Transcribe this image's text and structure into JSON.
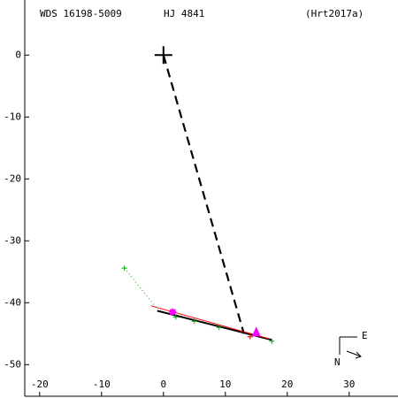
{
  "chart_data": {
    "type": "scatter",
    "title": "WDS 16198-5009",
    "subtitle": "HJ 4841",
    "reference": "(Hrt2017a)",
    "compass": {
      "east": "E",
      "north": "N"
    },
    "xlim": [
      -22.4,
      37.6
    ],
    "ylim": [
      -55.1,
      8.9
    ],
    "xticks": [
      -20,
      -10,
      0,
      10,
      20,
      30
    ],
    "yticks": [
      0,
      -10,
      -20,
      -30,
      -40,
      -50
    ],
    "series": [
      {
        "style": "dashed",
        "color": "#000000",
        "x": [
          0,
          13
        ],
        "y": [
          0,
          -45
        ]
      },
      {
        "style": "line",
        "color": "#000000",
        "x": [
          -1,
          17.5
        ],
        "y": [
          -41.3,
          -46
        ]
      },
      {
        "style": "line",
        "color": "#ff0000",
        "x": [
          -2,
          17
        ],
        "y": [
          -40.5,
          -45.8
        ]
      },
      {
        "style": "dotted",
        "color": "#00aa00",
        "x": [
          -6.3,
          -1
        ],
        "y": [
          -34.4,
          -41
        ]
      },
      {
        "style": "plus",
        "color": "#00aa00",
        "x": [
          -6.3,
          2,
          5,
          9,
          17.5
        ],
        "y": [
          -34.4,
          -42.3,
          -43,
          -44,
          -46.2
        ]
      },
      {
        "style": "triangle",
        "color": "#ff00ff",
        "x": [
          15
        ],
        "y": [
          -44.7
        ]
      },
      {
        "style": "star",
        "color": "#ff00ff",
        "x": [
          1.5
        ],
        "y": [
          -41.5
        ]
      },
      {
        "style": "plus",
        "color": "#cc0000",
        "x": [
          14
        ],
        "y": [
          -45.5
        ]
      },
      {
        "style": "bigcross",
        "color": "#000000",
        "x": [
          0
        ],
        "y": [
          0
        ]
      }
    ]
  }
}
